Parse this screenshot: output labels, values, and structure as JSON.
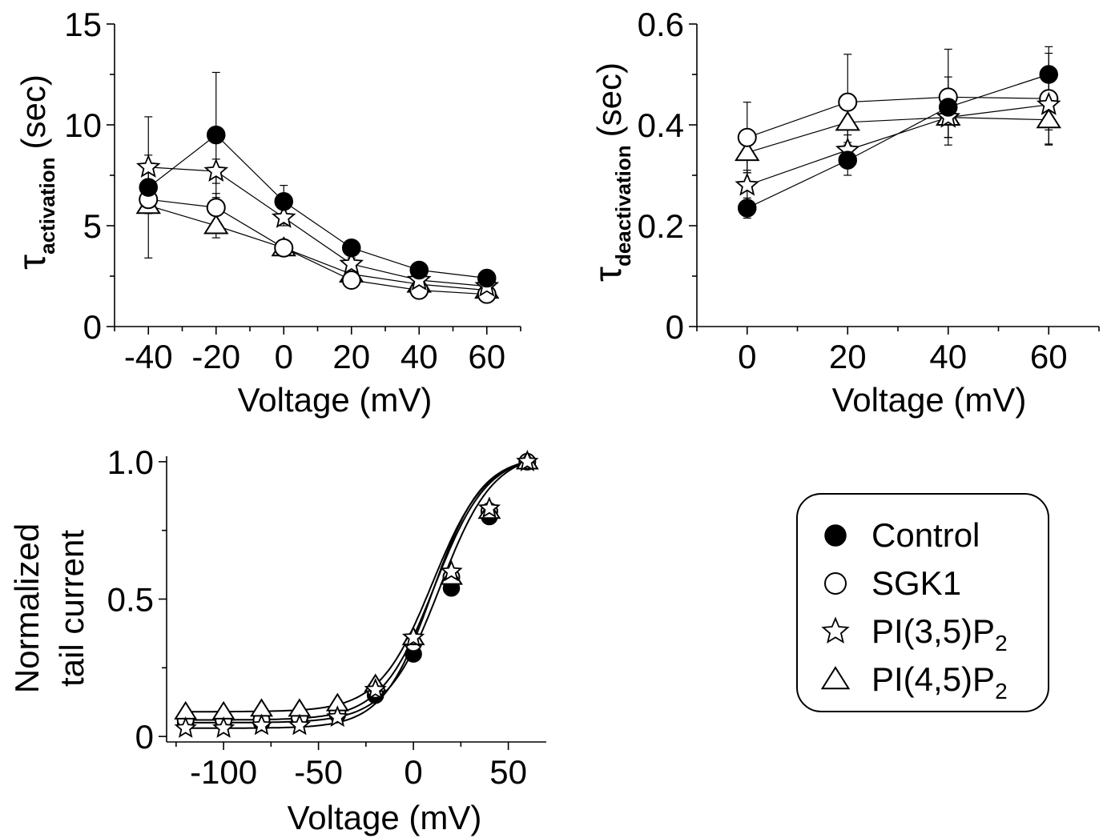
{
  "legend": {
    "items": [
      {
        "label": "Control",
        "marker": "filled-circle"
      },
      {
        "label": "SGK1",
        "marker": "open-circle"
      },
      {
        "label": "PI(3,5)P",
        "sub": "2",
        "marker": "open-star"
      },
      {
        "label": "PI(4,5)P",
        "sub": "2",
        "marker": "open-triangle"
      }
    ]
  },
  "chart_data": [
    {
      "type": "line",
      "xlabel": "Voltage (mV)",
      "ylabel_main": "τ",
      "ylabel_sub": "activation",
      "ylabel_unit": "(sec)",
      "xlim": [
        -50,
        70
      ],
      "ylim": [
        0,
        15
      ],
      "xticks": [
        "-40",
        "-20",
        "0",
        "20",
        "40",
        "60"
      ],
      "yticks": [
        "0",
        "5",
        "10",
        "15"
      ],
      "x": [
        -40,
        -20,
        0,
        20,
        40,
        60
      ],
      "series": [
        {
          "name": "Control",
          "values": [
            6.9,
            9.5,
            6.2,
            3.9,
            2.8,
            2.4
          ],
          "err": [
            3.5,
            3.1,
            0.8,
            0.3,
            0.3,
            0.3
          ]
        },
        {
          "name": "SGK1",
          "values": [
            6.3,
            5.9,
            3.9,
            2.3,
            1.8,
            1.6
          ],
          "err": [
            0.6,
            0.7,
            0.4,
            0.3,
            0.2,
            0.2
          ]
        },
        {
          "name": "PI(3,5)P2",
          "values": [
            7.9,
            7.7,
            5.4,
            3.1,
            2.3,
            2.0
          ],
          "err": [
            0.6,
            0.6,
            0.4,
            0.3,
            0.2,
            0.2
          ]
        },
        {
          "name": "PI(4,5)P2",
          "values": [
            6.0,
            5.0,
            3.9,
            2.6,
            2.1,
            1.8
          ],
          "err": [
            0.4,
            0.6,
            0.3,
            0.2,
            0.2,
            0.2
          ]
        }
      ]
    },
    {
      "type": "line",
      "xlabel": "Voltage (mV)",
      "ylabel_main": "τ",
      "ylabel_sub": "deactivation",
      "ylabel_unit": "(sec)",
      "xlim": [
        -10,
        70
      ],
      "ylim": [
        0,
        0.6
      ],
      "xticks": [
        "0",
        "20",
        "40",
        "60"
      ],
      "yticks": [
        "0",
        "0.2",
        "0.4",
        "0.6"
      ],
      "x": [
        0,
        20,
        40,
        60
      ],
      "series": [
        {
          "name": "Control",
          "values": [
            0.235,
            0.33,
            0.435,
            0.5
          ],
          "err": [
            0.02,
            0.03,
            0.06,
            0.055
          ]
        },
        {
          "name": "SGK1",
          "values": [
            0.375,
            0.445,
            0.455,
            0.452
          ],
          "err": [
            0.07,
            0.095,
            0.095,
            0.09
          ]
        },
        {
          "name": "PI(3,5)P2",
          "values": [
            0.28,
            0.35,
            0.415,
            0.44
          ],
          "err": [
            0.03,
            0.03,
            0.04,
            0.05
          ]
        },
        {
          "name": "PI(4,5)P2",
          "values": [
            0.345,
            0.405,
            0.415,
            0.41
          ],
          "err": [
            0.04,
            0.04,
            0.04,
            0.05
          ]
        }
      ]
    },
    {
      "type": "scatter",
      "xlabel": "Voltage (mV)",
      "ylabel_line1": "Normalized",
      "ylabel_line2": "tail current",
      "xlim": [
        -130,
        70
      ],
      "ylim": [
        -0.02,
        1.02
      ],
      "xticks": [
        "-100",
        "-50",
        "0",
        "50"
      ],
      "yticks": [
        "0",
        "0.5",
        "1.0"
      ],
      "x": [
        -120,
        -100,
        -80,
        -60,
        -40,
        -20,
        0,
        20,
        40,
        60
      ],
      "series": [
        {
          "name": "Control",
          "values": [
            0.05,
            0.05,
            0.05,
            0.06,
            0.08,
            0.15,
            0.3,
            0.54,
            0.8,
            1.0
          ],
          "fit": {
            "v_half": 14,
            "k": 14,
            "base": 0.05
          }
        },
        {
          "name": "SGK1",
          "values": [
            0.06,
            0.06,
            0.06,
            0.07,
            0.09,
            0.17,
            0.34,
            0.58,
            0.82,
            1.0
          ],
          "fit": {
            "v_half": 11,
            "k": 14,
            "base": 0.06
          }
        },
        {
          "name": "PI(3,5)P2",
          "values": [
            0.03,
            0.03,
            0.04,
            0.04,
            0.07,
            0.17,
            0.36,
            0.6,
            0.83,
            1.0
          ],
          "fit": {
            "v_half": 10,
            "k": 13,
            "base": 0.03
          }
        },
        {
          "name": "PI(4,5)P2",
          "values": [
            0.09,
            0.09,
            0.1,
            0.1,
            0.12,
            0.19,
            0.36,
            0.58,
            0.82,
            1.0
          ],
          "fit": {
            "v_half": 10,
            "k": 14,
            "base": 0.09
          }
        }
      ]
    }
  ]
}
